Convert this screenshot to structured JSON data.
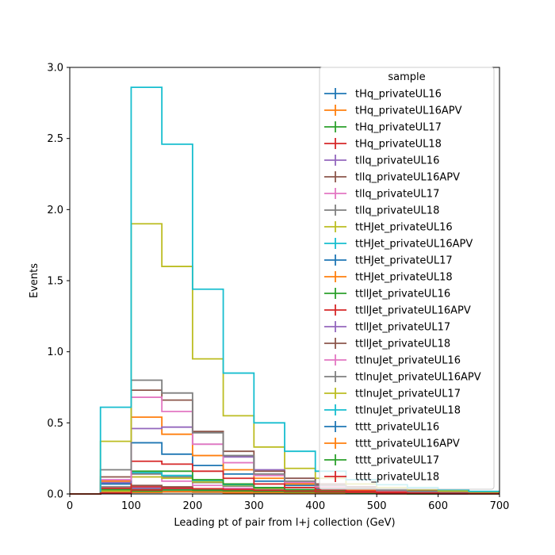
{
  "chart_data": {
    "type": "step-histogram",
    "xlabel": "Leading pt of pair from l+j collection (GeV)",
    "ylabel": "Events",
    "xlim": [
      0,
      700
    ],
    "ylim": [
      0,
      3.0
    ],
    "xticks": [
      0,
      100,
      200,
      300,
      400,
      500,
      600,
      700
    ],
    "yticks": [
      0.0,
      0.5,
      1.0,
      1.5,
      2.0,
      2.5,
      3.0
    ],
    "xtick_labels": [
      "0",
      "100",
      "200",
      "300",
      "400",
      "500",
      "600",
      "700"
    ],
    "ytick_labels": [
      "0.0",
      "0.5",
      "1.0",
      "1.5",
      "2.0",
      "2.5",
      "3.0"
    ],
    "legend_title": "sample",
    "legend_position": "upper right",
    "grid": false,
    "bin_edges": [
      0,
      50,
      100,
      150,
      200,
      250,
      300,
      350,
      400,
      450,
      500,
      550,
      600,
      650,
      700
    ],
    "series": [
      {
        "name": "tHq_privateUL16",
        "color": "#1f77b4",
        "values": [
          0,
          0.012,
          0.02,
          0.018,
          0.013,
          0.009,
          0.006,
          0.004,
          0.003,
          0.002,
          0.001,
          0.001,
          0.0005,
          0.0003
        ]
      },
      {
        "name": "tHq_privateUL16APV",
        "color": "#ff7f0e",
        "values": [
          0,
          0.011,
          0.018,
          0.016,
          0.012,
          0.008,
          0.005,
          0.004,
          0.003,
          0.002,
          0.001,
          0.001,
          0.0005,
          0.0003
        ]
      },
      {
        "name": "tHq_privateUL17",
        "color": "#2ca02c",
        "values": [
          0,
          0.02,
          0.035,
          0.03,
          0.022,
          0.015,
          0.01,
          0.007,
          0.005,
          0.003,
          0.002,
          0.001,
          0.001,
          0.0005
        ]
      },
      {
        "name": "tHq_privateUL18",
        "color": "#d62728",
        "values": [
          0,
          0.03,
          0.05,
          0.045,
          0.032,
          0.022,
          0.015,
          0.01,
          0.007,
          0.005,
          0.003,
          0.002,
          0.001,
          0.001
        ]
      },
      {
        "name": "tllq_privateUL16",
        "color": "#9467bd",
        "values": [
          0,
          0.02,
          0.04,
          0.035,
          0.026,
          0.018,
          0.012,
          0.008,
          0.005,
          0.004,
          0.002,
          0.002,
          0.001,
          0.001
        ]
      },
      {
        "name": "tllq_privateUL16APV",
        "color": "#8c564b",
        "values": [
          0,
          0.025,
          0.06,
          0.05,
          0.035,
          0.025,
          0.016,
          0.01,
          0.007,
          0.005,
          0.003,
          0.002,
          0.001,
          0.001
        ]
      },
      {
        "name": "tllq_privateUL17",
        "color": "#e377c2",
        "values": [
          0,
          0.04,
          0.12,
          0.09,
          0.06,
          0.04,
          0.025,
          0.016,
          0.011,
          0.007,
          0.005,
          0.003,
          0.002,
          0.001
        ]
      },
      {
        "name": "tllq_privateUL18",
        "color": "#7f7f7f",
        "values": [
          0,
          0.05,
          0.14,
          0.12,
          0.08,
          0.055,
          0.035,
          0.022,
          0.015,
          0.01,
          0.006,
          0.004,
          0.002,
          0.001
        ]
      },
      {
        "name": "ttHJet_privateUL16",
        "color": "#bcbd22",
        "values": [
          0,
          0.02,
          0.12,
          0.11,
          0.085,
          0.06,
          0.04,
          0.028,
          0.018,
          0.012,
          0.008,
          0.005,
          0.003,
          0.002
        ]
      },
      {
        "name": "ttHJet_privateUL16APV",
        "color": "#17becf",
        "values": [
          0,
          0.03,
          0.15,
          0.13,
          0.095,
          0.065,
          0.045,
          0.03,
          0.02,
          0.013,
          0.009,
          0.006,
          0.004,
          0.002
        ]
      },
      {
        "name": "ttHJet_privateUL17",
        "color": "#1f77b4",
        "values": [
          0,
          0.07,
          0.36,
          0.28,
          0.2,
          0.14,
          0.09,
          0.06,
          0.04,
          0.027,
          0.018,
          0.012,
          0.008,
          0.005
        ]
      },
      {
        "name": "ttHJet_privateUL18",
        "color": "#ff7f0e",
        "values": [
          0,
          0.09,
          0.54,
          0.42,
          0.27,
          0.17,
          0.11,
          0.07,
          0.047,
          0.03,
          0.02,
          0.013,
          0.009,
          0.006
        ]
      },
      {
        "name": "ttllJet_privateUL16",
        "color": "#2ca02c",
        "values": [
          0,
          0.03,
          0.16,
          0.16,
          0.1,
          0.07,
          0.045,
          0.03,
          0.02,
          0.013,
          0.009,
          0.006,
          0.004,
          0.002
        ]
      },
      {
        "name": "ttllJet_privateUL16APV",
        "color": "#d62728",
        "values": [
          0,
          0.04,
          0.23,
          0.21,
          0.16,
          0.11,
          0.07,
          0.045,
          0.03,
          0.02,
          0.013,
          0.009,
          0.006,
          0.004
        ]
      },
      {
        "name": "ttllJet_privateUL17",
        "color": "#9467bd",
        "values": [
          0,
          0.08,
          0.46,
          0.47,
          0.35,
          0.26,
          0.17,
          0.11,
          0.07,
          0.05,
          0.032,
          0.021,
          0.014,
          0.009
        ]
      },
      {
        "name": "ttllJet_privateUL18",
        "color": "#8c564b",
        "values": [
          0,
          0.12,
          0.73,
          0.66,
          0.44,
          0.3,
          0.16,
          0.11,
          0.07,
          0.05,
          0.032,
          0.021,
          0.014,
          0.009
        ]
      },
      {
        "name": "ttlnuJet_privateUL16",
        "color": "#e377c2",
        "values": [
          0,
          0.1,
          0.68,
          0.58,
          0.35,
          0.22,
          0.13,
          0.08,
          0.05,
          0.035,
          0.023,
          0.015,
          0.01,
          0.006
        ]
      },
      {
        "name": "ttlnuJet_privateUL16APV",
        "color": "#7f7f7f",
        "values": [
          0,
          0.17,
          0.8,
          0.71,
          0.43,
          0.27,
          0.14,
          0.09,
          0.06,
          0.04,
          0.026,
          0.017,
          0.011,
          0.007
        ]
      },
      {
        "name": "ttlnuJet_privateUL17",
        "color": "#bcbd22",
        "values": [
          0,
          0.37,
          1.9,
          1.6,
          0.95,
          0.55,
          0.33,
          0.18,
          0.11,
          0.07,
          0.045,
          0.03,
          0.02,
          0.012
        ]
      },
      {
        "name": "ttlnuJet_privateUL18",
        "color": "#17becf",
        "values": [
          0,
          0.61,
          2.86,
          2.46,
          1.44,
          0.85,
          0.5,
          0.3,
          0.16,
          0.1,
          0.065,
          0.045,
          0.03,
          0.018
        ]
      },
      {
        "name": "tttt_privateUL16",
        "color": "#1f77b4",
        "values": [
          0,
          0.003,
          0.01,
          0.014,
          0.013,
          0.011,
          0.009,
          0.007,
          0.005,
          0.004,
          0.003,
          0.002,
          0.002,
          0.001
        ]
      },
      {
        "name": "tttt_privateUL16APV",
        "color": "#ff7f0e",
        "values": [
          0,
          0.003,
          0.011,
          0.015,
          0.014,
          0.012,
          0.01,
          0.008,
          0.006,
          0.004,
          0.003,
          0.002,
          0.002,
          0.001
        ]
      },
      {
        "name": "tttt_privateUL17",
        "color": "#2ca02c",
        "values": [
          0,
          0.005,
          0.02,
          0.028,
          0.026,
          0.022,
          0.018,
          0.014,
          0.011,
          0.008,
          0.006,
          0.004,
          0.003,
          0.002
        ]
      },
      {
        "name": "tttt_privateUL18",
        "color": "#d62728",
        "values": [
          0,
          0.007,
          0.028,
          0.04,
          0.037,
          0.031,
          0.025,
          0.02,
          0.015,
          0.011,
          0.008,
          0.006,
          0.004,
          0.003
        ]
      }
    ]
  }
}
